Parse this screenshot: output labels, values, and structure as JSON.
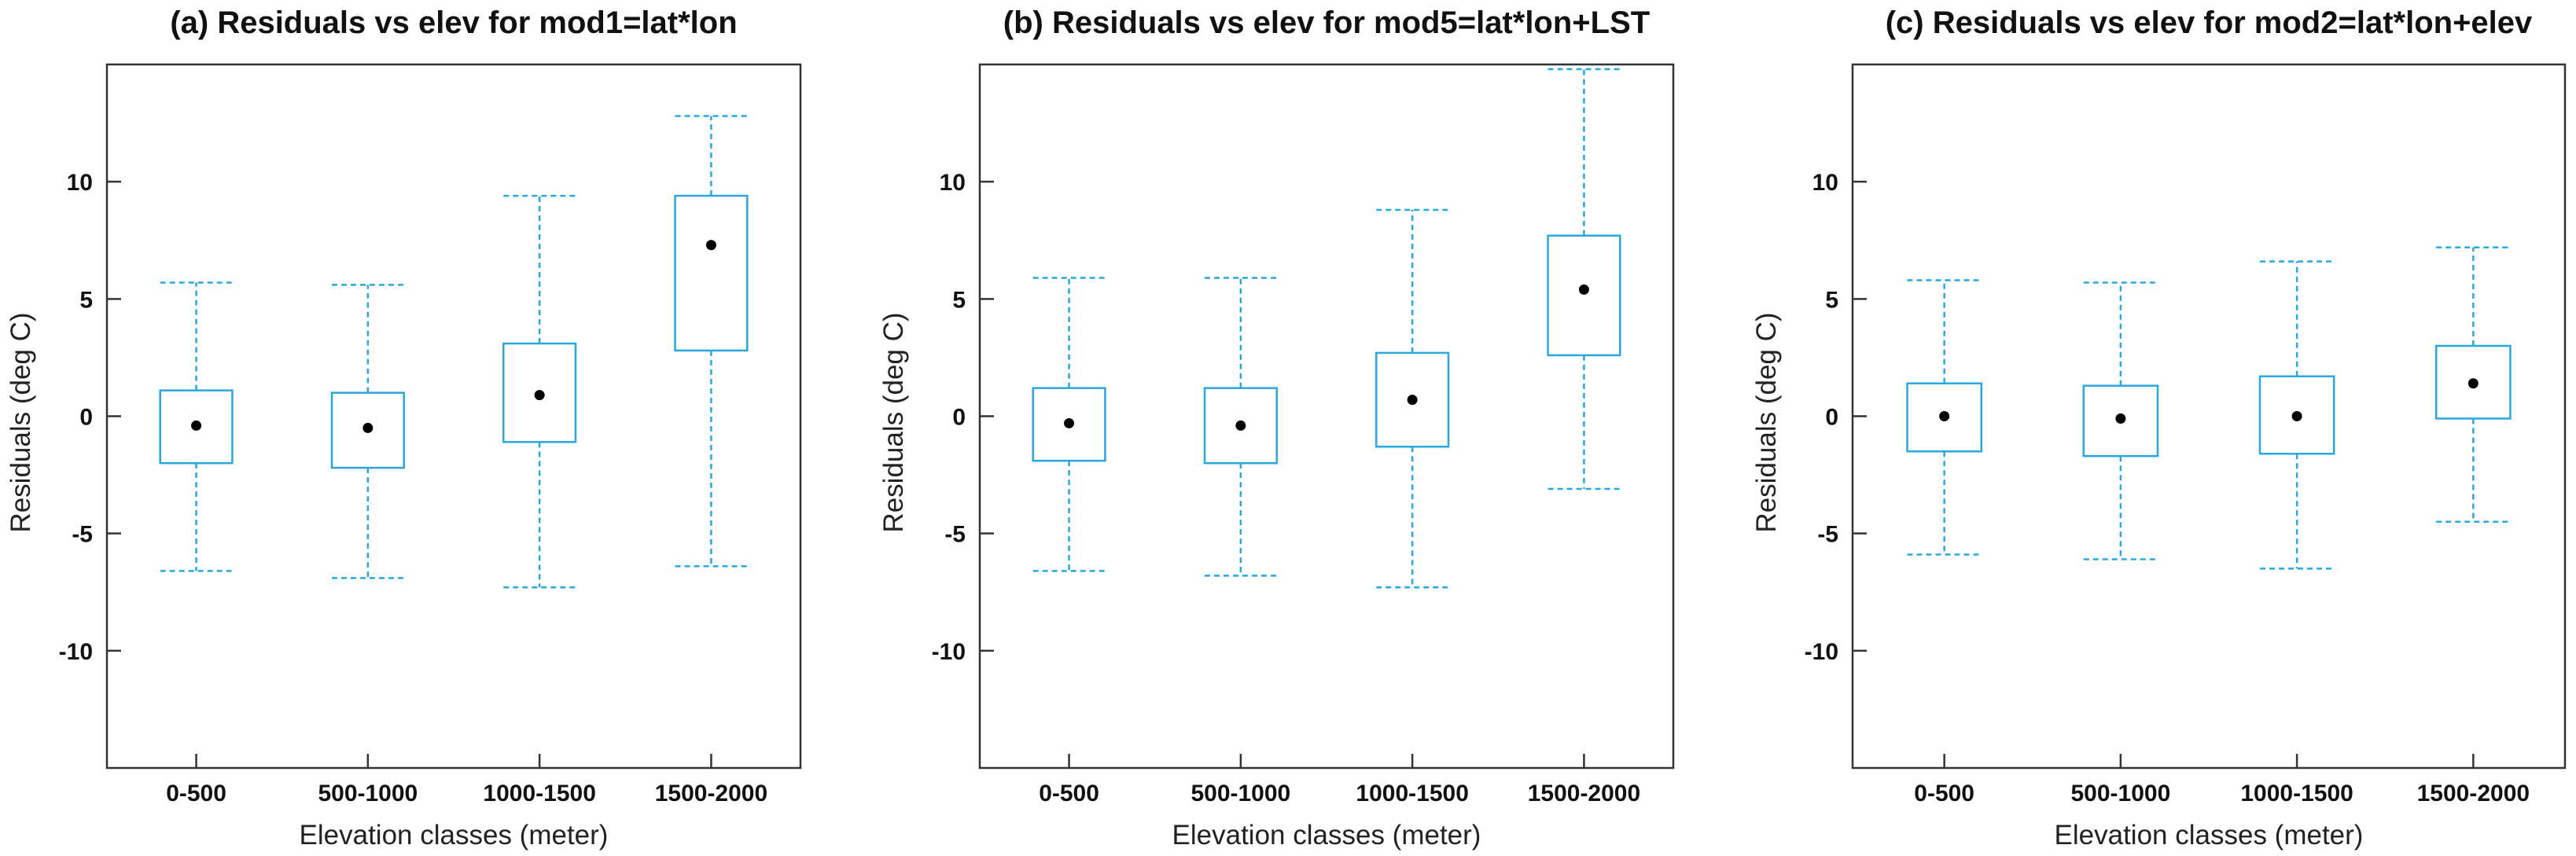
{
  "colors": {
    "box": "#29a8e0",
    "mean": "#000000",
    "frame": "#333333"
  },
  "chart_data": [
    {
      "type": "boxplot",
      "title": "(a) Residuals vs elev for mod1=lat*lon",
      "xlabel": "Elevation classes (meter)",
      "ylabel": "Residuals (deg C)",
      "ylim": [
        -15,
        15
      ],
      "yticks": [
        -10,
        -5,
        0,
        5,
        10
      ],
      "categories": [
        "0-500",
        "500-1000",
        "1000-1500",
        "1500-2000"
      ],
      "boxes": [
        {
          "whisker_low": -6.6,
          "q1": -2.0,
          "mean": -0.4,
          "q3": 1.1,
          "whisker_high": 5.7
        },
        {
          "whisker_low": -6.9,
          "q1": -2.2,
          "mean": -0.5,
          "q3": 1.0,
          "whisker_high": 5.6
        },
        {
          "whisker_low": -7.3,
          "q1": -1.1,
          "mean": 0.9,
          "q3": 3.1,
          "whisker_high": 9.4
        },
        {
          "whisker_low": -6.4,
          "q1": 2.8,
          "mean": 7.3,
          "q3": 9.4,
          "whisker_high": 12.8
        }
      ]
    },
    {
      "type": "boxplot",
      "title": "(b) Residuals vs elev for mod5=lat*lon+LST",
      "xlabel": "Elevation classes (meter)",
      "ylabel": "Residuals (deg C)",
      "ylim": [
        -15,
        15
      ],
      "yticks": [
        -10,
        -5,
        0,
        5,
        10
      ],
      "categories": [
        "0-500",
        "500-1000",
        "1000-1500",
        "1500-2000"
      ],
      "boxes": [
        {
          "whisker_low": -6.6,
          "q1": -1.9,
          "mean": -0.3,
          "q3": 1.2,
          "whisker_high": 5.9
        },
        {
          "whisker_low": -6.8,
          "q1": -2.0,
          "mean": -0.4,
          "q3": 1.2,
          "whisker_high": 5.9
        },
        {
          "whisker_low": -7.3,
          "q1": -1.3,
          "mean": 0.7,
          "q3": 2.7,
          "whisker_high": 8.8
        },
        {
          "whisker_low": -3.1,
          "q1": 2.6,
          "mean": 5.4,
          "q3": 7.7,
          "whisker_high": 14.8
        }
      ]
    },
    {
      "type": "boxplot",
      "title": "(c) Residuals vs elev for mod2=lat*lon+elev",
      "xlabel": "Elevation classes (meter)",
      "ylabel": "Residuals (deg C)",
      "ylim": [
        -15,
        15
      ],
      "yticks": [
        -10,
        -5,
        0,
        5,
        10
      ],
      "categories": [
        "0-500",
        "500-1000",
        "1000-1500",
        "1500-2000"
      ],
      "boxes": [
        {
          "whisker_low": -5.9,
          "q1": -1.5,
          "mean": 0.0,
          "q3": 1.4,
          "whisker_high": 5.8
        },
        {
          "whisker_low": -6.1,
          "q1": -1.7,
          "mean": -0.1,
          "q3": 1.3,
          "whisker_high": 5.7
        },
        {
          "whisker_low": -6.5,
          "q1": -1.6,
          "mean": 0.0,
          "q3": 1.7,
          "whisker_high": 6.6
        },
        {
          "whisker_low": -4.5,
          "q1": -0.1,
          "mean": 1.4,
          "q3": 3.0,
          "whisker_high": 7.2
        }
      ]
    }
  ]
}
